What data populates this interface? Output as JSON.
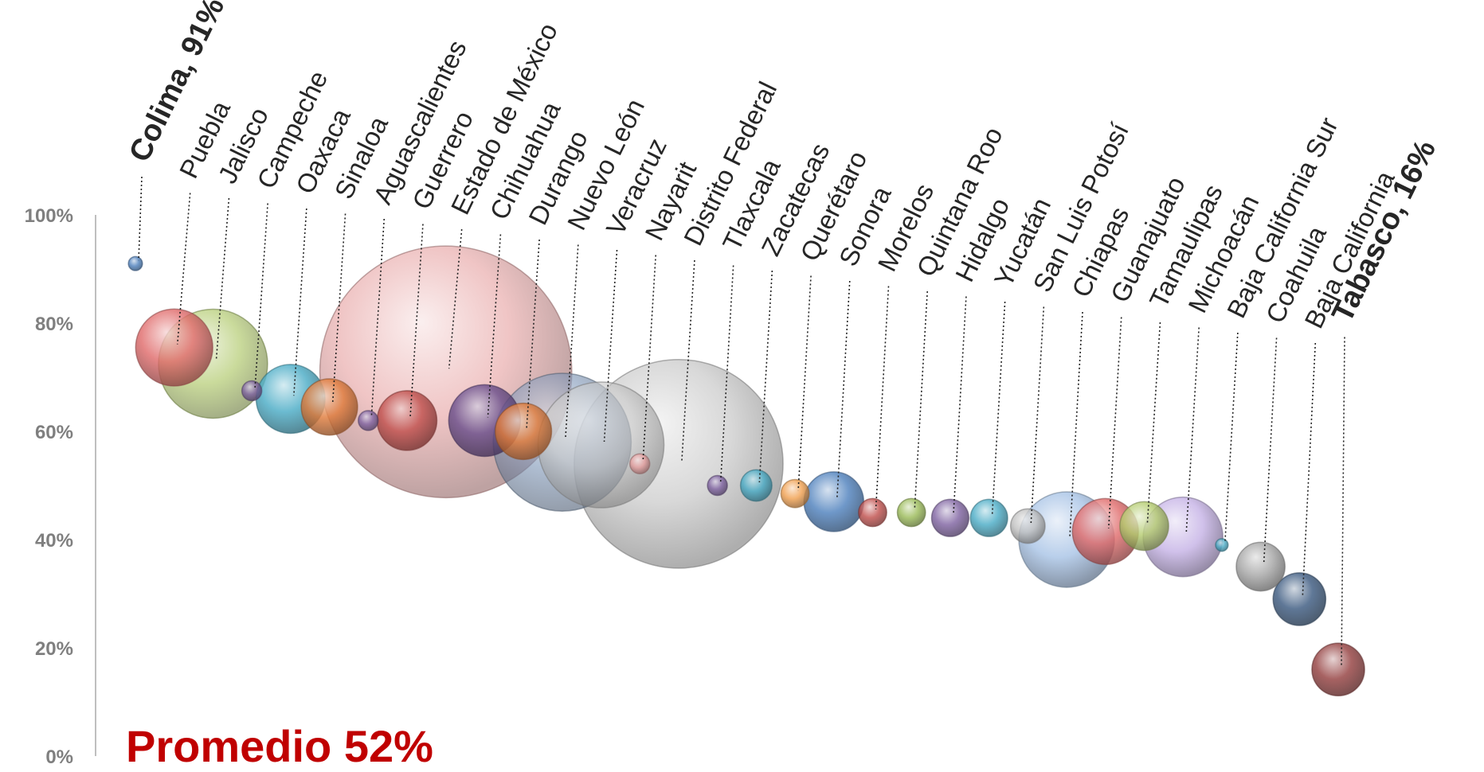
{
  "chart_data": {
    "type": "scatter",
    "y_axis": {
      "ticks": [
        "0%",
        "20%",
        "40%",
        "60%",
        "80%",
        "100%"
      ],
      "tick_values": [
        0,
        20,
        40,
        60,
        80,
        100
      ],
      "ylim": [
        0,
        100
      ]
    },
    "grid": false,
    "legend": "none",
    "annotation": "Promedio 52%",
    "bubble_size": "relative",
    "points": [
      {
        "label": "Colima, 91%",
        "y": 91,
        "size": 0.5,
        "color": "#4f81bd",
        "highlight": true
      },
      {
        "label": "Puebla",
        "y": 75.5,
        "size": 15,
        "color": "#e06c6c"
      },
      {
        "label": "Jalisco",
        "y": 72.5,
        "size": 30,
        "color": "#a9c45e"
      },
      {
        "label": "Campeche",
        "y": 67.5,
        "size": 1,
        "color": "#8064a2"
      },
      {
        "label": "Oaxaca",
        "y": 66,
        "size": 12,
        "color": "#4bacc6"
      },
      {
        "label": "Sinaloa",
        "y": 64.5,
        "size": 8,
        "color": "#e07c3c"
      },
      {
        "label": "Aguascalientes",
        "y": 62,
        "size": 1,
        "color": "#8064a2"
      },
      {
        "label": "Guerrero",
        "y": 62,
        "size": 9,
        "color": "#c0504d"
      },
      {
        "label": "Estado de México",
        "y": 71,
        "size": 160,
        "color": "#e6a1a1"
      },
      {
        "label": "Chihuahua",
        "y": 62,
        "size": 13,
        "color": "#6b4f8c"
      },
      {
        "label": "Durango",
        "y": 60,
        "size": 8,
        "color": "#e07c3c"
      },
      {
        "label": "Nuevo León",
        "y": 58,
        "size": 48,
        "color": "#7f97b8"
      },
      {
        "label": "Veracruz",
        "y": 57.5,
        "size": 40,
        "color": "#c8c8c8"
      },
      {
        "label": "Nayarit",
        "y": 54,
        "size": 1,
        "color": "#e6a1a1"
      },
      {
        "label": "Distrito Federal",
        "y": 54,
        "size": 110,
        "color": "#c0c0c0"
      },
      {
        "label": "Tlaxcala",
        "y": 50,
        "size": 1,
        "color": "#8064a2"
      },
      {
        "label": "Zacatecas",
        "y": 50,
        "size": 2.5,
        "color": "#4bacc6"
      },
      {
        "label": "Querétaro",
        "y": 48.5,
        "size": 2,
        "color": "#f0a050"
      },
      {
        "label": "Sonora",
        "y": 47,
        "size": 9,
        "color": "#4f81bd"
      },
      {
        "label": "Morelos",
        "y": 45,
        "size": 2,
        "color": "#c0504d"
      },
      {
        "label": "Quintana Roo",
        "y": 45,
        "size": 2,
        "color": "#9bbb59"
      },
      {
        "label": "Hidalgo",
        "y": 44,
        "size": 3.5,
        "color": "#8064a2"
      },
      {
        "label": "Yucatán",
        "y": 44,
        "size": 3.5,
        "color": "#4bacc6"
      },
      {
        "label": "San Luis Potosí",
        "y": 42.5,
        "size": 3,
        "color": "#c0c0c0"
      },
      {
        "label": "Chiapas",
        "y": 40,
        "size": 23,
        "color": "#a9c4e6"
      },
      {
        "label": "Guanajuato",
        "y": 41.5,
        "size": 11,
        "color": "#e06c6c"
      },
      {
        "label": "Tamaulipas",
        "y": 42.5,
        "size": 6,
        "color": "#b5cc70"
      },
      {
        "label": "Michoacán",
        "y": 40.5,
        "size": 16,
        "color": "#c6b3e6"
      },
      {
        "label": "Baja California Sur",
        "y": 39,
        "size": 0.4,
        "color": "#4bacc6"
      },
      {
        "label": "Coahuila",
        "y": 35,
        "size": 6,
        "color": "#a6a6a6"
      },
      {
        "label": "Baja California",
        "y": 29,
        "size": 7,
        "color": "#3c5a80"
      },
      {
        "label": "Tabasco, 16%",
        "y": 16,
        "size": 7,
        "color": "#944040",
        "highlight": true
      }
    ]
  }
}
